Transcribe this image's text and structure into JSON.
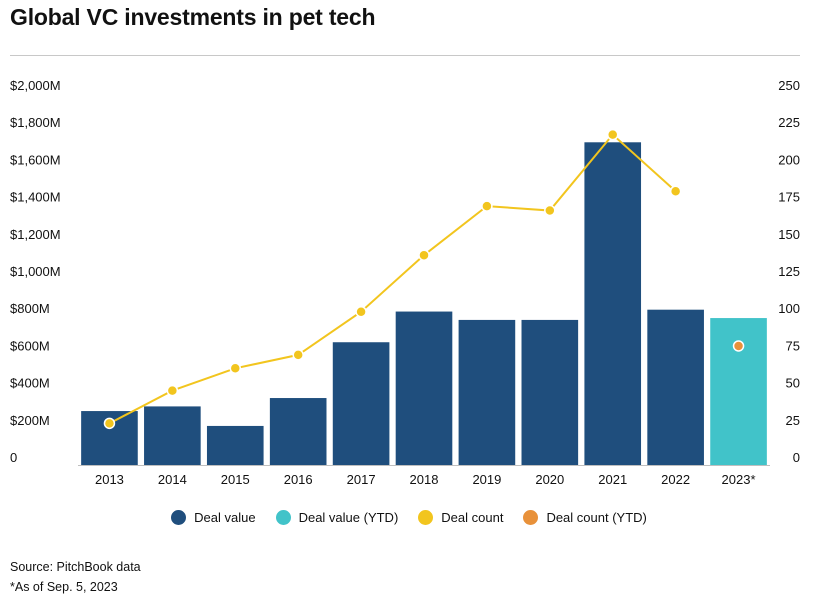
{
  "title": "Global VC investments in pet tech",
  "chart_data": {
    "type": "bar",
    "categories": [
      "2013",
      "2014",
      "2015",
      "2016",
      "2017",
      "2018",
      "2019",
      "2020",
      "2021",
      "2022",
      "2023*"
    ],
    "series": [
      {
        "name": "Deal value",
        "kind": "bar",
        "axis": "left",
        "color": "#1f4e7d",
        "values": [
          290,
          315,
          210,
          360,
          660,
          825,
          780,
          780,
          1735,
          835,
          null
        ]
      },
      {
        "name": "Deal value (YTD)",
        "kind": "bar",
        "axis": "left",
        "color": "#41c3c9",
        "values": [
          null,
          null,
          null,
          null,
          null,
          null,
          null,
          null,
          null,
          null,
          790
        ]
      },
      {
        "name": "Deal count",
        "kind": "line",
        "axis": "right",
        "color": "#f2c51e",
        "values": [
          28,
          50,
          65,
          74,
          103,
          141,
          174,
          171,
          222,
          184,
          null
        ]
      },
      {
        "name": "Deal count (YTD)",
        "kind": "point",
        "axis": "right",
        "color": "#e8913a",
        "values": [
          null,
          null,
          null,
          null,
          null,
          null,
          null,
          null,
          null,
          null,
          80
        ]
      }
    ],
    "y_left": {
      "lim": [
        0,
        2000
      ],
      "ticks": [
        "0",
        "$200M",
        "$400M",
        "$600M",
        "$800M",
        "$1,000M",
        "$1,200M",
        "$1,400M",
        "$1,600M",
        "$1,800M",
        "$2,000M"
      ]
    },
    "y_right": {
      "lim": [
        0,
        250
      ],
      "ticks": [
        "0",
        "25",
        "50",
        "75",
        "100",
        "125",
        "150",
        "175",
        "200",
        "225",
        "250"
      ]
    },
    "legend": "bottom-center",
    "grid": false
  },
  "legend_items": [
    {
      "label": "Deal value",
      "color": "#1f4e7d"
    },
    {
      "label": "Deal value (YTD)",
      "color": "#41c3c9"
    },
    {
      "label": "Deal count",
      "color": "#f2c51e"
    },
    {
      "label": "Deal count (YTD)",
      "color": "#e8913a"
    }
  ],
  "footer": {
    "source": "Source: PitchBook data",
    "note": "*As of Sep. 5, 2023"
  }
}
